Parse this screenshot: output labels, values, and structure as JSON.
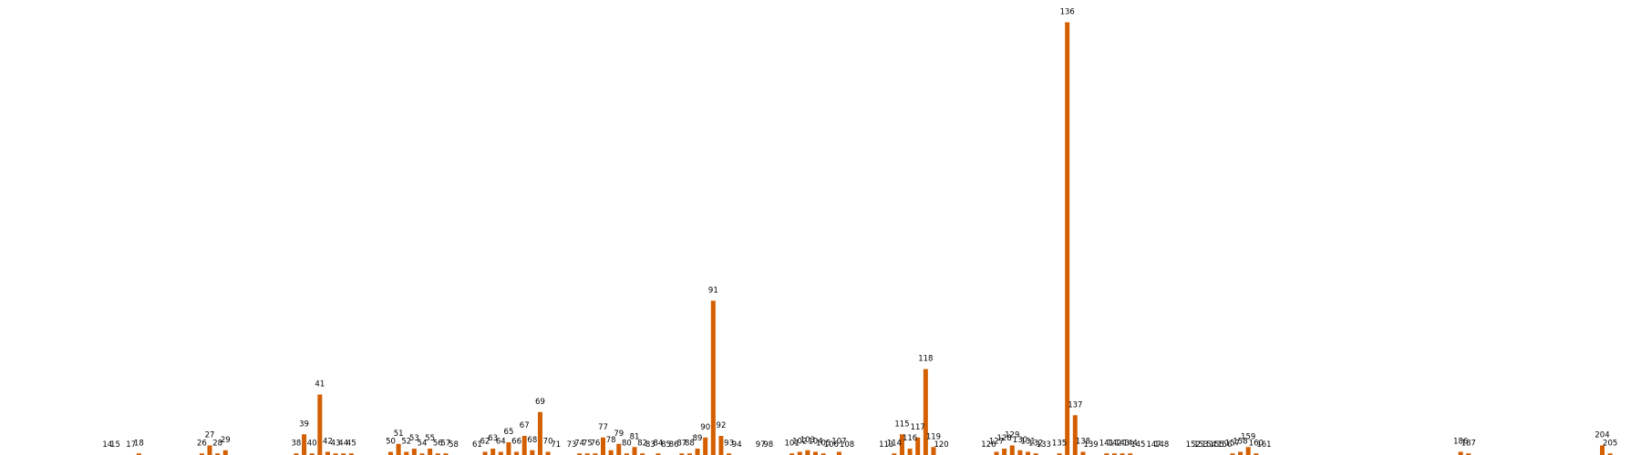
{
  "chart_data": {
    "type": "bar",
    "title": "",
    "xlabel": "",
    "ylabel": "",
    "ylim": [
      0,
      143
    ],
    "bar_color": "#d45f00",
    "grid": false,
    "legend": "none",
    "bars": [
      {
        "label": "14",
        "x": 14,
        "value": 0
      },
      {
        "label": "15",
        "x": 15,
        "value": 0
      },
      {
        "label": "17",
        "x": 17,
        "value": 0
      },
      {
        "label": "18",
        "x": 18,
        "value": 0.5
      },
      {
        "label": "26",
        "x": 26,
        "value": 0.5
      },
      {
        "label": "27",
        "x": 27,
        "value": 3
      },
      {
        "label": "28",
        "x": 28,
        "value": 0.5
      },
      {
        "label": "29",
        "x": 29,
        "value": 1.5
      },
      {
        "label": "38",
        "x": 38,
        "value": 0.5
      },
      {
        "label": "39",
        "x": 39,
        "value": 6.5
      },
      {
        "label": "40",
        "x": 40,
        "value": 0.5
      },
      {
        "label": "41",
        "x": 41,
        "value": 19
      },
      {
        "label": "42",
        "x": 42,
        "value": 1
      },
      {
        "label": "43",
        "x": 43,
        "value": 0.5
      },
      {
        "label": "44",
        "x": 44,
        "value": 0.5
      },
      {
        "label": "45",
        "x": 45,
        "value": 0.5
      },
      {
        "label": "50",
        "x": 50,
        "value": 1
      },
      {
        "label": "51",
        "x": 51,
        "value": 3.5
      },
      {
        "label": "52",
        "x": 52,
        "value": 1
      },
      {
        "label": "53",
        "x": 53,
        "value": 2
      },
      {
        "label": "54",
        "x": 54,
        "value": 0.5
      },
      {
        "label": "55",
        "x": 55,
        "value": 2
      },
      {
        "label": "56",
        "x": 56,
        "value": 0.5
      },
      {
        "label": "57",
        "x": 57,
        "value": 0.5
      },
      {
        "label": "58",
        "x": 58,
        "value": 0
      },
      {
        "label": "61",
        "x": 61,
        "value": 0
      },
      {
        "label": "62",
        "x": 62,
        "value": 1
      },
      {
        "label": "63",
        "x": 63,
        "value": 2
      },
      {
        "label": "64",
        "x": 64,
        "value": 1
      },
      {
        "label": "65",
        "x": 65,
        "value": 4
      },
      {
        "label": "66",
        "x": 66,
        "value": 1
      },
      {
        "label": "67",
        "x": 67,
        "value": 6
      },
      {
        "label": "68",
        "x": 68,
        "value": 1.5
      },
      {
        "label": "69",
        "x": 69,
        "value": 13.5
      },
      {
        "label": "70",
        "x": 70,
        "value": 1
      },
      {
        "label": "71",
        "x": 71,
        "value": 0
      },
      {
        "label": "73",
        "x": 73,
        "value": 0
      },
      {
        "label": "74",
        "x": 74,
        "value": 0.5
      },
      {
        "label": "75",
        "x": 75,
        "value": 0.5
      },
      {
        "label": "76",
        "x": 76,
        "value": 0.5
      },
      {
        "label": "77",
        "x": 77,
        "value": 5.5
      },
      {
        "label": "78",
        "x": 78,
        "value": 1.5
      },
      {
        "label": "79",
        "x": 79,
        "value": 3.5
      },
      {
        "label": "80",
        "x": 80,
        "value": 0.5
      },
      {
        "label": "81",
        "x": 81,
        "value": 2.5
      },
      {
        "label": "82",
        "x": 82,
        "value": 0.5
      },
      {
        "label": "83",
        "x": 83,
        "value": 0
      },
      {
        "label": "84",
        "x": 84,
        "value": 0.5
      },
      {
        "label": "85",
        "x": 85,
        "value": 0
      },
      {
        "label": "86",
        "x": 86,
        "value": 0
      },
      {
        "label": "87",
        "x": 87,
        "value": 0.5
      },
      {
        "label": "88",
        "x": 88,
        "value": 0.5
      },
      {
        "label": "89",
        "x": 89,
        "value": 2
      },
      {
        "label": "90",
        "x": 90,
        "value": 5.5
      },
      {
        "label": "91",
        "x": 91,
        "value": 48.5
      },
      {
        "label": "92",
        "x": 92,
        "value": 6
      },
      {
        "label": "93",
        "x": 93,
        "value": 0.5
      },
      {
        "label": "94",
        "x": 94,
        "value": 0
      },
      {
        "label": "97",
        "x": 97,
        "value": 0
      },
      {
        "label": "98",
        "x": 98,
        "value": 0
      },
      {
        "label": "101",
        "x": 101,
        "value": 0.5
      },
      {
        "label": "102",
        "x": 102,
        "value": 1
      },
      {
        "label": "103",
        "x": 103,
        "value": 1.5
      },
      {
        "label": "104",
        "x": 104,
        "value": 1
      },
      {
        "label": "105",
        "x": 105,
        "value": 0.5
      },
      {
        "label": "106",
        "x": 106,
        "value": 0
      },
      {
        "label": "107",
        "x": 107,
        "value": 1
      },
      {
        "label": "108",
        "x": 108,
        "value": 0
      },
      {
        "label": "113",
        "x": 113,
        "value": 0
      },
      {
        "label": "114",
        "x": 114,
        "value": 0.5
      },
      {
        "label": "115",
        "x": 115,
        "value": 6.5
      },
      {
        "label": "116",
        "x": 116,
        "value": 2
      },
      {
        "label": "117",
        "x": 117,
        "value": 5.5
      },
      {
        "label": "118",
        "x": 118,
        "value": 27
      },
      {
        "label": "119",
        "x": 119,
        "value": 2.5
      },
      {
        "label": "120",
        "x": 120,
        "value": 0
      },
      {
        "label": "126",
        "x": 126,
        "value": 0
      },
      {
        "label": "127",
        "x": 127,
        "value": 1
      },
      {
        "label": "128",
        "x": 128,
        "value": 2
      },
      {
        "label": "129",
        "x": 129,
        "value": 3
      },
      {
        "label": "130",
        "x": 130,
        "value": 1.5
      },
      {
        "label": "131",
        "x": 131,
        "value": 1
      },
      {
        "label": "132",
        "x": 132,
        "value": 0.5
      },
      {
        "label": "133",
        "x": 133,
        "value": 0
      },
      {
        "label": "135",
        "x": 135,
        "value": 0.5
      },
      {
        "label": "136",
        "x": 136,
        "value": 136
      },
      {
        "label": "137",
        "x": 137,
        "value": 12.5
      },
      {
        "label": "138",
        "x": 138,
        "value": 1
      },
      {
        "label": "139",
        "x": 139,
        "value": 0
      },
      {
        "label": "141",
        "x": 141,
        "value": 0.5
      },
      {
        "label": "142",
        "x": 142,
        "value": 0.5
      },
      {
        "label": "143",
        "x": 143,
        "value": 0.5
      },
      {
        "label": "144",
        "x": 144,
        "value": 0.5
      },
      {
        "label": "145",
        "x": 145,
        "value": 0
      },
      {
        "label": "147",
        "x": 147,
        "value": 0
      },
      {
        "label": "148",
        "x": 148,
        "value": 0
      },
      {
        "label": "152",
        "x": 152,
        "value": 0
      },
      {
        "label": "153",
        "x": 153,
        "value": 0
      },
      {
        "label": "154",
        "x": 154,
        "value": 0
      },
      {
        "label": "155",
        "x": 155,
        "value": 0
      },
      {
        "label": "156",
        "x": 156,
        "value": 0
      },
      {
        "label": "157",
        "x": 157,
        "value": 0.5
      },
      {
        "label": "158",
        "x": 158,
        "value": 1
      },
      {
        "label": "159",
        "x": 159,
        "value": 2.5
      },
      {
        "label": "160",
        "x": 160,
        "value": 0.5
      },
      {
        "label": "161",
        "x": 161,
        "value": 0
      },
      {
        "label": "186",
        "x": 186,
        "value": 1
      },
      {
        "label": "187",
        "x": 187,
        "value": 0.5
      },
      {
        "label": "204",
        "x": 204,
        "value": 3
      },
      {
        "label": "205",
        "x": 205,
        "value": 0.5
      }
    ]
  }
}
